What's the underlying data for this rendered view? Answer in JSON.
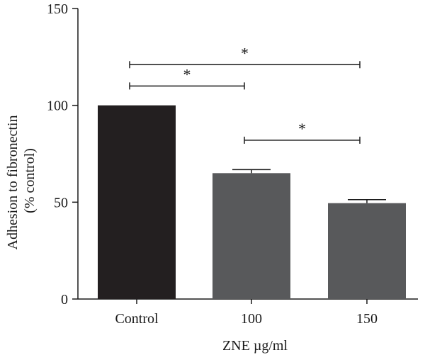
{
  "chart_data": {
    "type": "bar",
    "categories": [
      "Control",
      "100",
      "150"
    ],
    "values": [
      100,
      65,
      49.5
    ],
    "errors": [
      0,
      1.8,
      1.8
    ],
    "bar_colors": [
      "#231f20",
      "#58595b",
      "#58595b"
    ],
    "xlabel": "ZNE µg/ml",
    "ylabel_lines": [
      "Adhesion to fibronectin",
      "(% control)"
    ],
    "ylim": [
      0,
      150
    ],
    "yticks": [
      0,
      50,
      100,
      150
    ],
    "grid": false,
    "significance": [
      {
        "from": 0,
        "to": 1,
        "level": 110,
        "label": "*"
      },
      {
        "from": 0,
        "to": 2,
        "level": 121,
        "label": "*"
      },
      {
        "from": 1,
        "to": 2,
        "level": 82,
        "label": "*"
      }
    ]
  }
}
